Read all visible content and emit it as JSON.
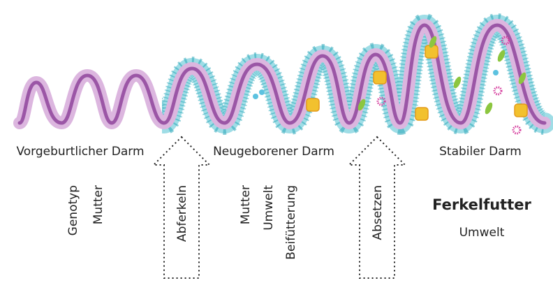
{
  "stages": [
    "Vorgeburtlicher Darm",
    "Neugeborener Darm",
    "Stabiler Darm"
  ],
  "transitions": [
    "Abferkeln",
    "Absetzen"
  ],
  "factors": {
    "prenatal": [
      "Genotyp",
      "Mutter"
    ],
    "newborn": [
      "Mutter",
      "Umwelt",
      "Beifütterung"
    ],
    "stable_title": "Ferkelfutter",
    "stable": [
      "Umwelt"
    ]
  }
}
